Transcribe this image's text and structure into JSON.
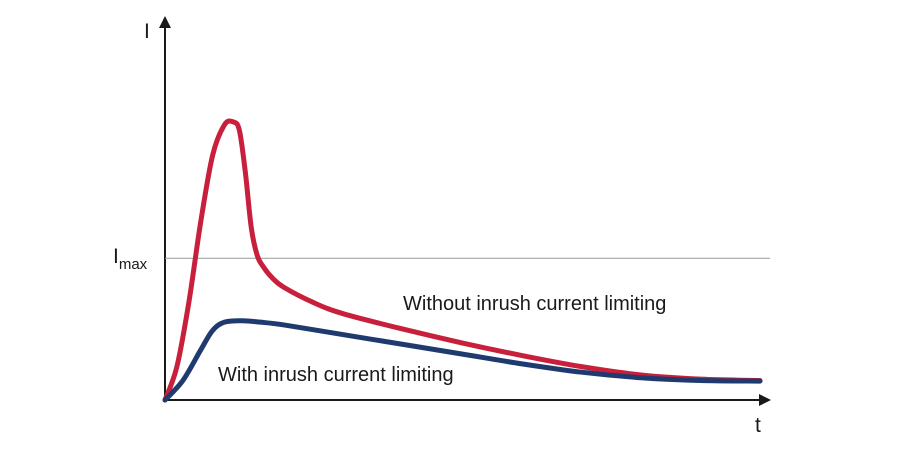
{
  "chart_data": {
    "type": "line",
    "title": "",
    "xlabel": "t",
    "ylabel": "I",
    "grid": false,
    "xlim": [
      0,
      1
    ],
    "ylim": [
      0,
      1
    ],
    "reference_lines": [
      {
        "label_main": "I",
        "label_sub": "max",
        "y": 0.51,
        "color": "#9a9a9a"
      }
    ],
    "series": [
      {
        "name": "Without inrush current limiting",
        "color": "#c8203c",
        "x": [
          0.0,
          0.02,
          0.04,
          0.06,
          0.08,
          0.1,
          0.115,
          0.125,
          0.135,
          0.145,
          0.155,
          0.165,
          0.18,
          0.2,
          0.25,
          0.3,
          0.4,
          0.5,
          0.6,
          0.7,
          0.8,
          0.9,
          1.0
        ],
        "values": [
          0.0,
          0.12,
          0.35,
          0.64,
          0.88,
          0.99,
          1.0,
          0.97,
          0.82,
          0.62,
          0.52,
          0.48,
          0.44,
          0.405,
          0.35,
          0.31,
          0.255,
          0.205,
          0.16,
          0.12,
          0.09,
          0.075,
          0.07
        ]
      },
      {
        "name": "With inrush current limiting",
        "color": "#1f3a6e",
        "x": [
          0.0,
          0.03,
          0.06,
          0.08,
          0.1,
          0.13,
          0.16,
          0.2,
          0.3,
          0.4,
          0.5,
          0.6,
          0.7,
          0.8,
          0.9,
          1.0
        ],
        "values": [
          0.0,
          0.07,
          0.18,
          0.25,
          0.28,
          0.285,
          0.28,
          0.27,
          0.235,
          0.2,
          0.165,
          0.13,
          0.1,
          0.08,
          0.07,
          0.068
        ]
      }
    ]
  }
}
